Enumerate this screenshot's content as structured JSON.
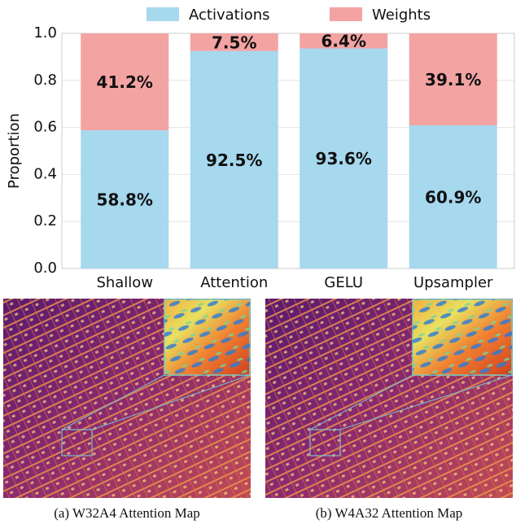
{
  "chart_data": {
    "type": "stacked_bar",
    "categories": [
      "Shallow",
      "Attention",
      "GELU",
      "Upsampler"
    ],
    "y_label": "Proportion",
    "series": [
      {
        "name": "Activations",
        "color": "#a6d8ee",
        "values": [
          0.588,
          0.925,
          0.936,
          0.609
        ],
        "value_labels": [
          "58.8%",
          "92.5%",
          "93.6%",
          "60.9%"
        ]
      },
      {
        "name": "Weights",
        "color": "#f4a3a3",
        "values": [
          0.412,
          0.075,
          0.064,
          0.391
        ],
        "value_labels": [
          "41.2%",
          "7.5%",
          "6.4%",
          "39.1%"
        ]
      }
    ],
    "ylim": [
      0,
      1
    ],
    "yticks": [
      {
        "value": 0,
        "label": "0.0"
      },
      0.2,
      0.4,
      0.6,
      0.8,
      {
        "value": 1,
        "label": "1.0"
      }
    ],
    "grid": true,
    "legend": "top"
  },
  "images": [
    {
      "caption": "(a) W32A4 Attention Map"
    },
    {
      "caption": "(b) W4A32 Attention Map"
    }
  ]
}
